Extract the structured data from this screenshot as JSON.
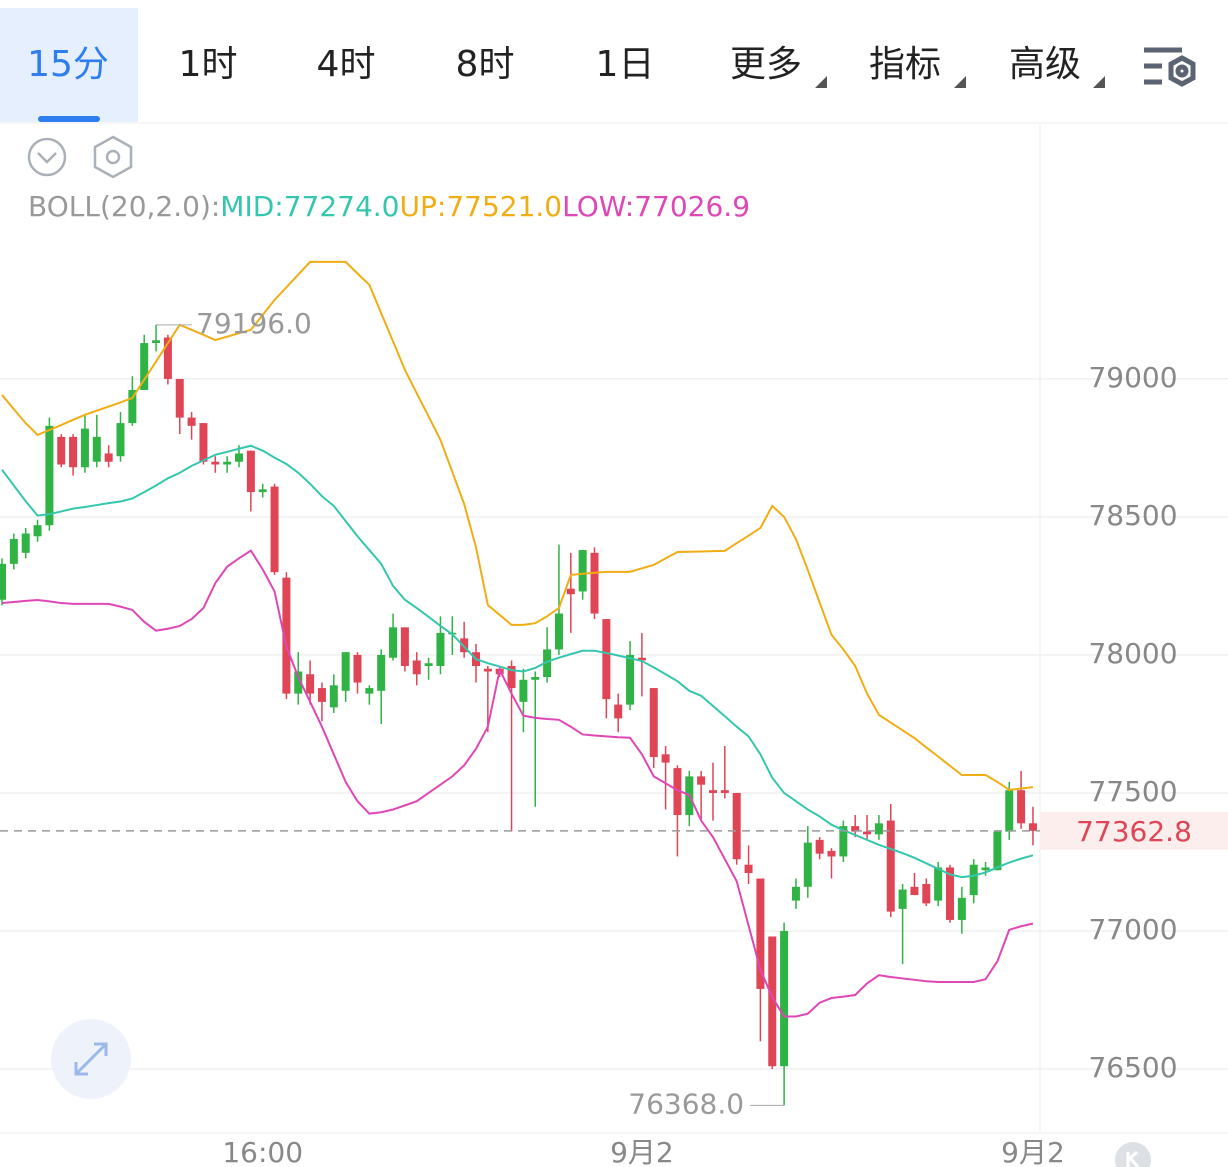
{
  "tabs": [
    "15分",
    "1时",
    "4时",
    "8时",
    "1日",
    "更多",
    "指标",
    "高级"
  ],
  "chart_data": {
    "type": "candlestick",
    "indicator_label": "BOLL(20,2.0):",
    "categories": [
      null,
      null,
      null,
      null,
      null,
      null,
      null,
      null,
      null,
      null,
      null,
      null,
      null,
      null,
      null,
      null,
      null,
      null,
      null,
      null,
      null,
      null,
      "16:00",
      null,
      null,
      null,
      null,
      null,
      null,
      null,
      null,
      null,
      null,
      null,
      null,
      null,
      null,
      null,
      null,
      null,
      null,
      null,
      null,
      null,
      null,
      null,
      null,
      null,
      null,
      null,
      null,
      null,
      null,
      null,
      "9月2",
      null,
      null,
      null,
      null,
      null,
      null,
      null,
      null,
      null,
      null,
      null,
      null,
      null,
      null,
      null,
      null,
      null,
      null,
      null,
      null,
      null,
      null,
      null,
      null,
      null,
      null,
      null,
      null,
      null,
      null,
      null,
      null,
      "9月2"
    ],
    "open": [
      78200,
      78330,
      78370,
      78430,
      78470,
      78790,
      78790,
      78680,
      78700,
      78730,
      78720,
      78840,
      78960,
      79130,
      79150,
      79000,
      78860,
      78840,
      78700,
      78690,
      78700,
      78740,
      78590,
      78610,
      78280,
      77860,
      77930,
      77880,
      77810,
      77870,
      78000,
      77860,
      77870,
      77990,
      78100,
      77980,
      77960,
      77960,
      78080,
      78060,
      78010,
      77950,
      77950,
      77960,
      77830,
      77910,
      77920,
      78020,
      78240,
      78230,
      78370,
      78130,
      77820,
      77820,
      77990,
      77880,
      77640,
      77590,
      77420,
      77560,
      77510,
      77510,
      77500,
      77240,
      77190,
      76980,
      76510,
      77110,
      77160,
      77330,
      77290,
      77270,
      77380,
      77360,
      77350,
      77400,
      77080,
      77160,
      77170,
      77110,
      77230,
      77040,
      77130,
      77220,
      77220,
      77360,
      77510,
      77390
    ],
    "high": [
      78350,
      78440,
      78460,
      78490,
      78860,
      78800,
      78800,
      78870,
      78870,
      78760,
      78880,
      79010,
      79160,
      79196,
      79160,
      79000,
      78880,
      78840,
      78720,
      78720,
      78760,
      78740,
      78620,
      78620,
      78300,
      78010,
      77980,
      77900,
      77930,
      78010,
      78010,
      77890,
      78020,
      78150,
      78100,
      78010,
      77990,
      78140,
      78140,
      78120,
      78040,
      77960,
      77960,
      77980,
      77950,
      77940,
      78100,
      78400,
      78370,
      78380,
      78390,
      78130,
      77860,
      78050,
      78080,
      77880,
      77670,
      77600,
      77580,
      77580,
      77610,
      77670,
      77500,
      77310,
      77190,
      76980,
      77030,
      77190,
      77380,
      77340,
      77300,
      77400,
      77420,
      77420,
      77420,
      77460,
      77170,
      77210,
      77190,
      77250,
      77240,
      77160,
      77260,
      77250,
      77360,
      77540,
      77580,
      77450
    ],
    "low": [
      78180,
      78310,
      78350,
      78410,
      78450,
      78680,
      78650,
      78660,
      78680,
      78680,
      78700,
      78830,
      78960,
      79100,
      78980,
      78800,
      78780,
      78690,
      78660,
      78660,
      78680,
      78520,
      78570,
      78290,
      77840,
      77820,
      77820,
      77760,
      77790,
      77830,
      77860,
      77820,
      77750,
      77980,
      77940,
      77890,
      77910,
      77930,
      78000,
      77990,
      77900,
      77720,
      77920,
      77360,
      77720,
      77450,
      77900,
      78000,
      78080,
      78200,
      78130,
      77770,
      77720,
      77800,
      77850,
      77590,
      77440,
      77270,
      77380,
      77400,
      77400,
      77480,
      77240,
      77170,
      76600,
      76500,
      76368,
      77080,
      77120,
      77260,
      77190,
      77250,
      77340,
      77330,
      77330,
      77050,
      76880,
      77130,
      77090,
      77090,
      77030,
      76990,
      77100,
      77200,
      77220,
      77330,
      77370,
      77310
    ],
    "close": [
      78330,
      78420,
      78440,
      78470,
      78830,
      78690,
      78680,
      78820,
      78790,
      78700,
      78840,
      78960,
      79130,
      79140,
      79000,
      78860,
      78830,
      78700,
      78690,
      78700,
      78730,
      78590,
      78600,
      78300,
      77860,
      77940,
      77860,
      77830,
      77890,
      78010,
      77900,
      77880,
      78000,
      78100,
      77960,
      77930,
      77970,
      78080,
      78080,
      78010,
      77960,
      77940,
      77930,
      77880,
      77910,
      77920,
      78020,
      78150,
      78220,
      78380,
      78150,
      77840,
      77770,
      78000,
      77980,
      77630,
      77610,
      77420,
      77560,
      77530,
      77500,
      77500,
      77260,
      77210,
      76790,
      76510,
      77000,
      77160,
      77320,
      77280,
      77270,
      77380,
      77360,
      77350,
      77390,
      77070,
      77150,
      77130,
      77100,
      77230,
      77040,
      77120,
      77240,
      77230,
      77360,
      77510,
      77390,
      77362.8
    ],
    "up_color": "#2fb344",
    "down_color": "#e04556",
    "series": [
      {
        "name": "MID:77274.0",
        "color": "#35c7ad",
        "values": [
          78671,
          78614,
          78557,
          78505,
          78510,
          78520,
          78530,
          78536,
          78543,
          78550,
          78556,
          78567,
          78590,
          78614,
          78640,
          78660,
          78685,
          78705,
          78725,
          78736,
          78747,
          78758,
          78740,
          78715,
          78692,
          78660,
          78620,
          78575,
          78540,
          78485,
          78430,
          78380,
          78330,
          78250,
          78200,
          78170,
          78138,
          78105,
          78075,
          78030,
          77985,
          77970,
          77958,
          77945,
          77940,
          77953,
          77975,
          77990,
          78003,
          78015,
          78015,
          78007,
          77998,
          77988,
          77978,
          77955,
          77930,
          77905,
          77870,
          77852,
          77815,
          77778,
          77740,
          77705,
          77640,
          77555,
          77500,
          77470,
          77440,
          77415,
          77385,
          77365,
          77348,
          77330,
          77312,
          77297,
          77282,
          77265,
          77245,
          77225,
          77205,
          77195,
          77200,
          77212,
          77230,
          77248,
          77262,
          77274
        ]
      },
      {
        "name": "UP:77521.0",
        "color": "#f0ad14",
        "values": [
          78942,
          78890,
          78840,
          78797,
          78815,
          78833,
          78852,
          78870,
          78885,
          78900,
          78915,
          78931,
          78997,
          79063,
          79130,
          79196,
          79178,
          79160,
          79141,
          79153,
          79166,
          79178,
          79232,
          79286,
          79332,
          79378,
          79424,
          79424,
          79424,
          79424,
          79382,
          79341,
          79238,
          79136,
          79033,
          78948,
          78864,
          78779,
          78663,
          78547,
          78390,
          78181,
          78145,
          78109,
          78109,
          78115,
          78140,
          78170,
          78290,
          78294,
          78298,
          78301,
          78301,
          78301,
          78314,
          78326,
          78350,
          78373,
          78374,
          78375,
          78376,
          78377,
          78405,
          78432,
          78460,
          78540,
          78500,
          78420,
          78308,
          78190,
          78073,
          78020,
          77960,
          77860,
          77783,
          77755,
          77727,
          77699,
          77665,
          77632,
          77598,
          77565,
          77565,
          77565,
          77540,
          77511,
          77516,
          77521
        ]
      },
      {
        "name": "LOW:77026.9",
        "color": "#de47b6",
        "values": [
          78188,
          78192,
          78196,
          78199,
          78194,
          78188,
          78185,
          78185,
          78185,
          78185,
          78175,
          78163,
          78120,
          78088,
          78095,
          78105,
          78130,
          78170,
          78260,
          78320,
          78350,
          78378,
          78310,
          78230,
          78030,
          77920,
          77830,
          77740,
          77640,
          77540,
          77470,
          77425,
          77430,
          77440,
          77455,
          77470,
          77500,
          77530,
          77560,
          77600,
          77660,
          77740,
          77946,
          77860,
          77780,
          77772,
          77768,
          77765,
          77740,
          77712,
          77708,
          77705,
          77702,
          77700,
          77640,
          77560,
          77535,
          77510,
          77493,
          77400,
          77340,
          77260,
          77180,
          77020,
          76860,
          76760,
          76690,
          76690,
          76700,
          76740,
          76757,
          76762,
          76768,
          76810,
          76840,
          76833,
          76828,
          76823,
          76818,
          76815,
          76815,
          76815,
          76815,
          76825,
          76890,
          77004,
          77017,
          77027
        ]
      }
    ],
    "ylim": [
      76268,
      79920
    ],
    "yticks": [
      79000,
      78500,
      78000,
      77500,
      77000,
      76500
    ],
    "grid": true,
    "annotations": [
      {
        "value": 79196,
        "label": "79196.0"
      },
      {
        "value": 76368,
        "label": "76368.0"
      }
    ],
    "last_price": {
      "value": 77362.8,
      "label": "77362.8"
    }
  }
}
